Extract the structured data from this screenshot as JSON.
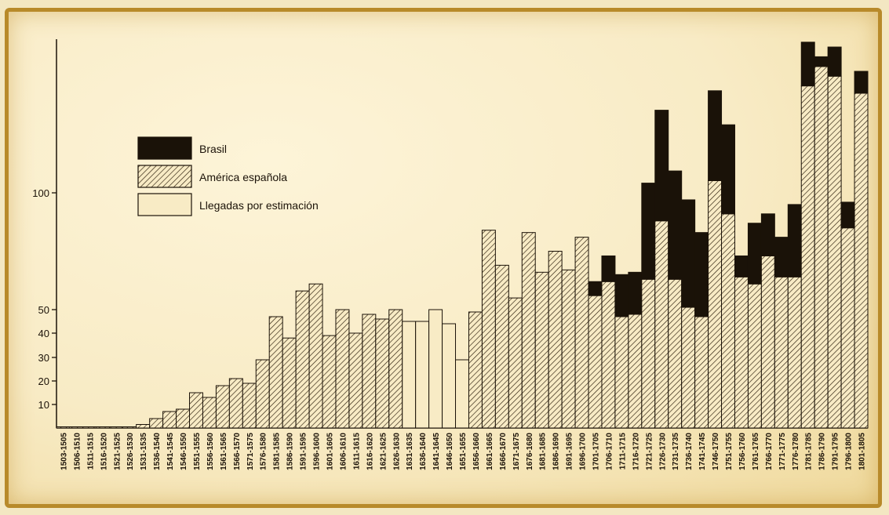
{
  "chart_data": {
    "type": "bar",
    "stacked": true,
    "categories": [
      "1503-1505",
      "1506-1510",
      "1511-1515",
      "1516-1520",
      "1521-1525",
      "1526-1530",
      "1531-1535",
      "1536-1540",
      "1541-1545",
      "1546-1550",
      "1551-1555",
      "1556-1560",
      "1561-1565",
      "1566-1570",
      "1571-1575",
      "1576-1580",
      "1581-1585",
      "1586-1590",
      "1591-1595",
      "1596-1600",
      "1601-1605",
      "1606-1610",
      "1611-1615",
      "1616-1620",
      "1621-1625",
      "1626-1630",
      "1631-1635",
      "1636-1640",
      "1641-1645",
      "1646-1650",
      "1651-1655",
      "1656-1660",
      "1661-1665",
      "1666-1670",
      "1671-1675",
      "1676-1680",
      "1681-1685",
      "1686-1690",
      "1691-1695",
      "1696-1700",
      "1701-1705",
      "1706-1710",
      "1711-1715",
      "1716-1720",
      "1721-1725",
      "1726-1730",
      "1731-1735",
      "1736-1740",
      "1741-1745",
      "1746-1750",
      "1751-1755",
      "1756-1760",
      "1761-1765",
      "1766-1770",
      "1771-1775",
      "1776-1780",
      "1781-1785",
      "1786-1790",
      "1791-1795",
      "1796-1800",
      "1801-1805"
    ],
    "series": [
      {
        "name": "Brasil",
        "color": "#1a1208",
        "pattern": "solid",
        "values": [
          0,
          0,
          0,
          0,
          0,
          0,
          0,
          0,
          0,
          0,
          0,
          0,
          0,
          0,
          0,
          0,
          0,
          0,
          0,
          0,
          0,
          0,
          0,
          0,
          0,
          0,
          0,
          0,
          0,
          0,
          0,
          0,
          0,
          0,
          0,
          0,
          0,
          0,
          0,
          0,
          6,
          11,
          18,
          18,
          41,
          46,
          46,
          46,
          36,
          37,
          37,
          9,
          26,
          18,
          17,
          31,
          18,
          4,
          12,
          11,
          9
        ]
      },
      {
        "name": "América española",
        "color": "#1a1208",
        "pattern": "hatch",
        "values": [
          0.5,
          0.5,
          0.5,
          0.5,
          0.5,
          0.5,
          1.5,
          4,
          7,
          8,
          15,
          13,
          18,
          21,
          19,
          29,
          47,
          38,
          58,
          61,
          39,
          50,
          40,
          48,
          46,
          50,
          0,
          0,
          0,
          0,
          0,
          49,
          84,
          69,
          55,
          83,
          66,
          75,
          67,
          81,
          56,
          62,
          47,
          48,
          63,
          88,
          63,
          51,
          47,
          105,
          91,
          64,
          61,
          73,
          64,
          64,
          144,
          152,
          148,
          85,
          141
        ]
      },
      {
        "name": "Llegadas por estimación",
        "color": "#f8ebc5",
        "pattern": "empty",
        "values": [
          0,
          0,
          0,
          0,
          0,
          0,
          0,
          0,
          0,
          0,
          0,
          0,
          0,
          0,
          0,
          0,
          0,
          0,
          0,
          0,
          0,
          0,
          0,
          0,
          0,
          0,
          45,
          45,
          50,
          44,
          29,
          0,
          0,
          0,
          0,
          0,
          0,
          0,
          0,
          0,
          0,
          0,
          0,
          0,
          0,
          0,
          0,
          0,
          0,
          0,
          0,
          0,
          0,
          0,
          0,
          0,
          0,
          0,
          0,
          0,
          0
        ]
      }
    ],
    "y_ticks": [
      "10",
      "20",
      "30",
      "40",
      "50",
      "100"
    ],
    "y_tick_values": [
      10,
      20,
      30,
      40,
      50,
      100
    ],
    "ylim": [
      0,
      160
    ],
    "legend_position": "top-left",
    "grid": false
  }
}
